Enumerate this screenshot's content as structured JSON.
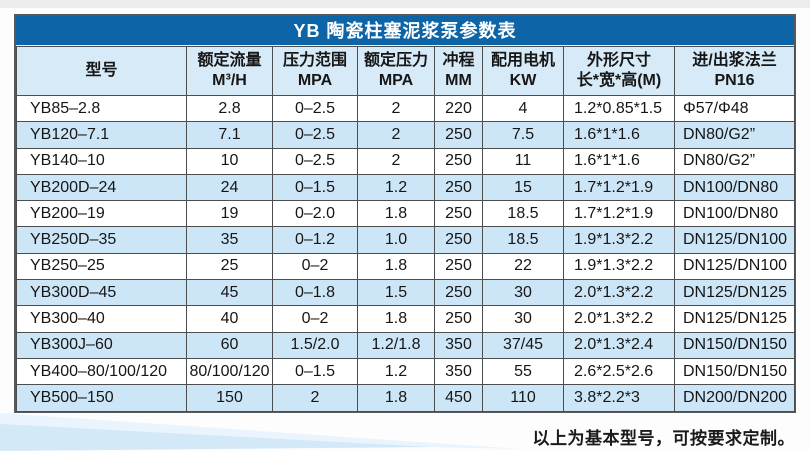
{
  "page": {
    "title": "YB 陶瓷柱塞泥浆泵参数表",
    "footer_note": "以上为基本型号，可按要求定制。"
  },
  "colors": {
    "title_bar": "#0d64a7",
    "header_bg": "#d7eaf8",
    "stripe_bg": "#cde6f7",
    "outer_border": "#58595b",
    "grid_line": "#4c4d4f",
    "wedge_light": "#e9f4fc",
    "wedge_main": "#d3e9f8"
  },
  "table": {
    "columns": [
      {
        "line1": "型号",
        "line2": ""
      },
      {
        "line1": "额定流量",
        "line2": "M³/H"
      },
      {
        "line1": "压力范围",
        "line2": "MPA"
      },
      {
        "line1": "额定压力",
        "line2": "MPA"
      },
      {
        "line1": "冲程",
        "line2": "MM"
      },
      {
        "line1": "配用电机",
        "line2": "KW"
      },
      {
        "line1": "外形尺寸",
        "line2": "长*宽*高(M)"
      },
      {
        "line1": "进/出浆法兰",
        "line2": "PN16"
      }
    ],
    "rows": [
      [
        "YB85–2.8",
        "2.8",
        "0–2.5",
        "2",
        "220",
        "4",
        "1.2*0.85*1.5",
        "Φ57/Φ48"
      ],
      [
        "YB120–7.1",
        "7.1",
        "0–2.5",
        "2",
        "250",
        "7.5",
        "1.6*1*1.6",
        "DN80/G2”"
      ],
      [
        "YB140–10",
        "10",
        "0–2.5",
        "2",
        "250",
        "11",
        "1.6*1*1.6",
        "DN80/G2”"
      ],
      [
        "YB200D–24",
        "24",
        "0–1.5",
        "1.2",
        "250",
        "15",
        "1.7*1.2*1.9",
        "DN100/DN80"
      ],
      [
        "YB200–19",
        "19",
        "0–2.0",
        "1.8",
        "250",
        "18.5",
        "1.7*1.2*1.9",
        "DN100/DN80"
      ],
      [
        "YB250D–35",
        "35",
        "0–1.2",
        "1.0",
        "250",
        "18.5",
        "1.9*1.3*2.2",
        "DN125/DN100"
      ],
      [
        "YB250–25",
        "25",
        "0–2",
        "1.8",
        "250",
        "22",
        "1.9*1.3*2.2",
        "DN125/DN100"
      ],
      [
        "YB300D–45",
        "45",
        "0–1.8",
        "1.5",
        "250",
        "30",
        "2.0*1.3*2.2",
        "DN125/DN125"
      ],
      [
        "YB300–40",
        "40",
        "0–2",
        "1.8",
        "250",
        "30",
        "2.0*1.3*2.2",
        "DN125/DN125"
      ],
      [
        "YB300J–60",
        "60",
        "1.5/2.0",
        "1.2/1.8",
        "350",
        "37/45",
        "2.0*1.3*2.4",
        "DN150/DN150"
      ],
      [
        "YB400–80/100/120",
        "80/100/120",
        "0–1.5",
        "1.2",
        "350",
        "55",
        "2.6*2.5*2.6",
        "DN150/DN150"
      ],
      [
        "YB500–150",
        "150",
        "2",
        "1.8",
        "450",
        "110",
        "3.8*2.2*3",
        "DN200/DN200"
      ]
    ]
  }
}
